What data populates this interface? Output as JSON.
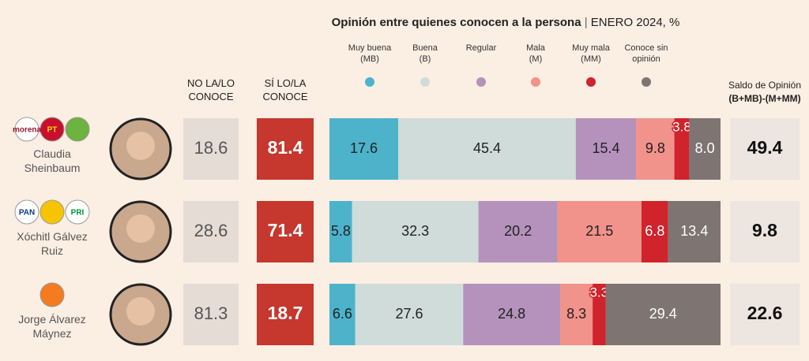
{
  "chart_data": {
    "type": "stacked-bar",
    "title": "Opinión entre quienes conocen a la persona",
    "subtitle": "ENERO 2024, %",
    "col_no": "NO LA/LO CONOCE",
    "col_si": "SÍ LO/LA CONOCE",
    "col_saldo": "Saldo de Opinión",
    "col_saldo_formula": "(B+MB)-(M+MM)",
    "categories": [
      "Claudia Sheinbaum",
      "Xóchitl Gálvez Ruiz",
      "Jorge Álvarez Máynez"
    ],
    "parties": [
      [
        "morena",
        "PT"
      ],
      [
        "PAN",
        "PRI"
      ],
      []
    ],
    "no_conoce": [
      18.6,
      28.6,
      81.3
    ],
    "si_conoce": [
      81.4,
      71.4,
      18.7
    ],
    "saldo": [
      49.4,
      9.8,
      22.6
    ],
    "series": [
      {
        "name": "Muy buena",
        "abbr": "(MB)",
        "color": "#4cb3cb",
        "values": [
          17.6,
          5.8,
          6.6
        ]
      },
      {
        "name": "Buena",
        "abbr": "(B)",
        "color": "#cfdcda",
        "values": [
          45.4,
          32.3,
          27.6
        ]
      },
      {
        "name": "Regular",
        "color": "#b592bb",
        "values": [
          15.4,
          20.2,
          24.8
        ]
      },
      {
        "name": "Mala",
        "abbr": "(M)",
        "color": "#f1928b",
        "values": [
          9.8,
          21.5,
          8.3
        ]
      },
      {
        "name": "Muy mala",
        "abbr": "(MM)",
        "color": "#d0232b",
        "values": [
          3.8,
          6.8,
          3.3
        ]
      },
      {
        "name": "Conoce sin opinión",
        "color": "#7e7472",
        "values": [
          8,
          13.4,
          29.4
        ],
        "value_labels": [
          "8.0",
          "13.4",
          "29.4"
        ]
      }
    ]
  }
}
